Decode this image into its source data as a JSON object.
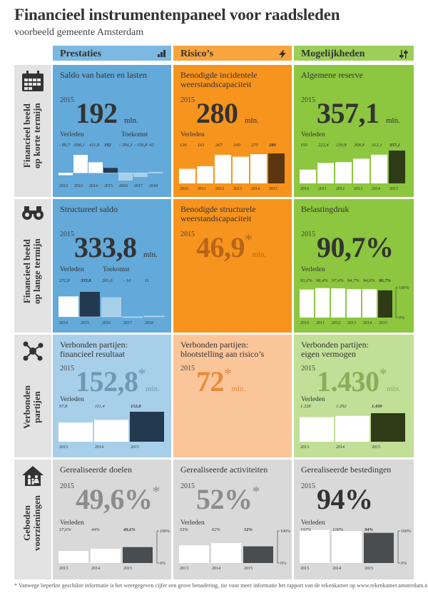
{
  "title": "Financieel instrumentenpaneel voor raadsleden",
  "subtitle": "voorbeeld gemeente Amsterdam",
  "columns": {
    "prestaties": {
      "label": "Prestaties",
      "icon": "bar-chart-icon"
    },
    "risicos": {
      "label": "Risico’s",
      "icon": "lightning-icon"
    },
    "mogelijkheden": {
      "label": "Mogelijkheden",
      "icon": "sliders-icon"
    }
  },
  "rows": {
    "r1": {
      "line1": "Financieel beeld",
      "line2": "op korte termijn",
      "icon": "calendar-icon"
    },
    "r2": {
      "line1": "Financieel beeld",
      "line2": "op lange termijn",
      "icon": "binoculars-icon"
    },
    "r3": {
      "line1": "Verbonden",
      "line2": "partijen",
      "icon": "network-icon"
    },
    "r4": {
      "line1": "Geboden",
      "line2": "voorzieningen",
      "icon": "house-family-icon"
    }
  },
  "cells": {
    "c11": {
      "title1": "Saldo van baten en lasten",
      "title2": "",
      "year": "2015",
      "value": "192",
      "unit": "mln.",
      "star": "",
      "past": "Verleden",
      "future": "Toekomst"
    },
    "c12": {
      "title1": "Benodigde incidentele",
      "title2": "weerstandscapaciteit",
      "year": "2015",
      "value": "280",
      "unit": "mln.",
      "star": "",
      "past": "Verleden"
    },
    "c13": {
      "title1": "Algemene reserve",
      "title2": "",
      "year": "2015",
      "value": "357,1",
      "unit": "mln.",
      "star": "",
      "past": "Verleden"
    },
    "c21": {
      "title1": "Structureel saldo",
      "title2": "",
      "year": "2015",
      "value": "333,8",
      "unit": "mln.",
      "star": "",
      "past": "Verleden",
      "future": "Toekomst"
    },
    "c22": {
      "title1": "Benodigde structurele",
      "title2": "weerstandscapaciteit",
      "year": "2015",
      "value": "46,9",
      "unit": "mln.",
      "star": "*"
    },
    "c23": {
      "title1": "Belastingdruk",
      "title2": "",
      "year": "2015",
      "value": "90,7%",
      "unit": "",
      "star": "",
      "past": "Verleden"
    },
    "c31": {
      "title1": "Verbonden partijen:",
      "title2": "financieel resultaat",
      "year": "2015",
      "value": "152,8",
      "unit": "mln.",
      "star": "*",
      "past": "Verleden"
    },
    "c32": {
      "title1": "Verbonden partijen:",
      "title2": "blootstelling aan risico’s",
      "year": "2015",
      "value": "72",
      "unit": "mln.",
      "star": "*"
    },
    "c33": {
      "title1": "Verbonden partijen:",
      "title2": "eigen vermogen",
      "year": "2015",
      "value": "1.430",
      "unit": "mln.",
      "star": "*",
      "past": "Verleden"
    },
    "c41": {
      "title1": "Gerealiseerde doelen",
      "title2": "",
      "year": "2015",
      "value": "49,6%",
      "unit": "",
      "star": "*",
      "past": "Verleden"
    },
    "c42": {
      "title1": "Gerealiseerde activiteiten",
      "title2": "",
      "year": "2015",
      "value": "52%",
      "unit": "",
      "star": "*",
      "past": "Verleden"
    },
    "c43": {
      "title1": "Gerealiseerde bestedingen",
      "title2": "",
      "year": "2015",
      "value": "94%",
      "unit": "",
      "star": "",
      "past": "Verleden"
    }
  },
  "colors": {
    "blue": "#63a9d9",
    "blue_light": "#a8cfea",
    "blue_pale": "#c9e1f2",
    "orange": "#f7941d",
    "orange_light": "#fbbf8a",
    "orange_pale": "#fcd1ab",
    "green": "#8dc63f",
    "green_light": "#b5d98a",
    "green_pale": "#cfe6b0",
    "gray": "#d9d9d9",
    "gray_head": "#e3e3e3",
    "dark_blue": "#23394f",
    "dark_brown": "#5c3511",
    "dark_green": "#2f3a16",
    "dark_gray": "#4a4d50"
  },
  "chart_data": [
    {
      "id": "c11",
      "type": "bar",
      "title": "Saldo van baten en lasten",
      "categories": [
        "2012",
        "2013",
        "2014",
        "2015",
        "2016",
        "2017",
        "2018"
      ],
      "values": [
        -89.7,
        698.1,
        411.8,
        192,
        -294.3,
        -156.8,
        42
      ],
      "labels": [
        "- 89,7",
        "698,1",
        "411,8",
        "192",
        "- 294,3",
        "- 156,8",
        "42"
      ],
      "baseline": 0,
      "highlight": 3,
      "future_from": 4
    },
    {
      "id": "c12",
      "type": "bar",
      "title": "Benodigde incidentele weerstandscapaciteit",
      "categories": [
        "2010",
        "2011",
        "2012",
        "2013",
        "2014",
        "2015"
      ],
      "values": [
        136,
        161,
        267,
        249,
        273,
        280
      ],
      "labels": [
        "136",
        "161",
        "267",
        "249",
        "273",
        "280"
      ],
      "highlight": 5
    },
    {
      "id": "c13",
      "type": "bar",
      "title": "Algemene reserve",
      "categories": [
        "2010",
        "2011",
        "2012",
        "2013",
        "2014",
        "2015"
      ],
      "values": [
        150,
        222.4,
        230.8,
        268.9,
        312.1,
        357.1
      ],
      "labels": [
        "150",
        "222,4",
        "230,8",
        "268,9",
        "312,1",
        "357,1"
      ],
      "highlight": 5
    },
    {
      "id": "c21",
      "type": "bar",
      "title": "Structureel saldo",
      "categories": [
        "2014",
        "2015",
        "2016",
        "2017",
        "2018"
      ],
      "values": [
        272.8,
        333.8,
        261.6,
        -10,
        11
      ],
      "labels": [
        "272,8",
        "333,8",
        "261,6",
        "- 10",
        "11"
      ],
      "baseline": 0,
      "highlight": 1,
      "future_from": 2
    },
    {
      "id": "c23",
      "type": "bar",
      "title": "Belastingdruk",
      "categories": [
        "2010",
        "2011",
        "2012",
        "2013",
        "2014",
        "2015"
      ],
      "values": [
        93.6,
        98.4,
        97.4,
        94.7,
        94.6,
        90.7
      ],
      "labels": [
        "93,6%",
        "98,4%",
        "97,4%",
        "94,7%",
        "94,6%",
        "90,7%"
      ],
      "ylim": [
        0,
        100
      ],
      "ylabels": [
        "100%",
        "0%"
      ],
      "highlight": 5
    },
    {
      "id": "c31",
      "type": "bar",
      "title": "Verbonden partijen: financieel resultaat",
      "categories": [
        "2013",
        "2014",
        "2015"
      ],
      "values": [
        97.8,
        111.4,
        152.8
      ],
      "labels": [
        "97,8",
        "111,4",
        "152,8"
      ],
      "highlight": 2
    },
    {
      "id": "c33",
      "type": "bar",
      "title": "Verbonden partijen: eigen vermogen",
      "categories": [
        "2013",
        "2014",
        "2015"
      ],
      "values": [
        1228,
        1292,
        1430
      ],
      "labels": [
        "1.228",
        "1.292",
        "1.430"
      ],
      "highlight": 2
    },
    {
      "id": "c41",
      "type": "bar",
      "title": "Gerealiseerde doelen",
      "categories": [
        "2013",
        "2014",
        "2015"
      ],
      "values": [
        37.6,
        44,
        49.6
      ],
      "labels": [
        "37,6%",
        "44%",
        "49,6%"
      ],
      "ylim": [
        0,
        100
      ],
      "ylabels": [
        "100%",
        "0%"
      ],
      "highlight": 2
    },
    {
      "id": "c42",
      "type": "bar",
      "title": "Gerealiseerde activiteiten",
      "categories": [
        "2013",
        "2014",
        "2015"
      ],
      "values": [
        55,
        62,
        52
      ],
      "labels": [
        "55%",
        "62%",
        "52%"
      ],
      "ylim": [
        0,
        100
      ],
      "ylabels": [
        "100%",
        "0%"
      ],
      "highlight": 2
    },
    {
      "id": "c43",
      "type": "bar",
      "title": "Gerealiseerde bestedingen",
      "categories": [
        "2013",
        "2014",
        "2015"
      ],
      "values": [
        103,
        100,
        94
      ],
      "labels": [
        "103%",
        "100%",
        "94%"
      ],
      "ylim": [
        0,
        100
      ],
      "ylabels": [
        "100%",
        "0%"
      ],
      "highlight": 2
    }
  ],
  "footnote": "* Vanwege beperkte geschikte informatie is het weergegeven cijfer een grove benadering, zie voor meer informatie het rapport van de rekenkamer op www.rekenkamer.amsterdam.nl"
}
